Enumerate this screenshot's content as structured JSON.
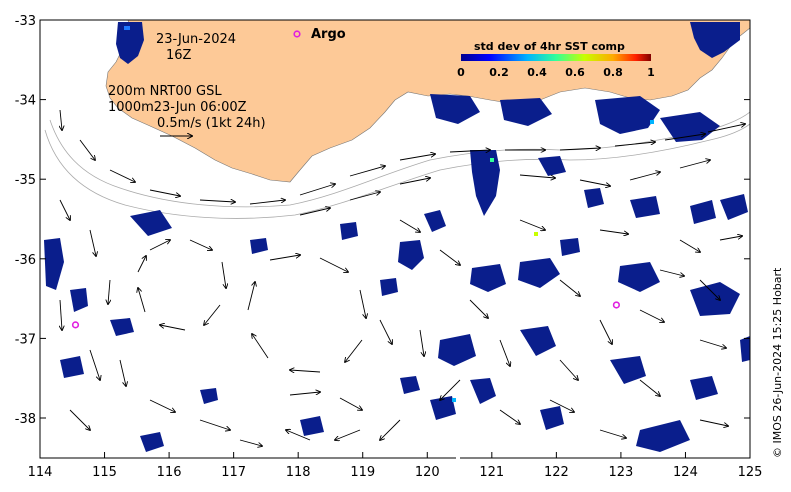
{
  "labels": {
    "date": "23-Jun-2024",
    "time": "16Z",
    "line1": "200m  NRT00 GSL",
    "line2": "1000m23-Jun 06:00Z",
    "scale": "0.5m/s (1kt 24h)",
    "argo": "Argo",
    "colorbar_title": "std dev of 4hr SST comp",
    "credit": "© IMOS 26-Jun-2024 15:25 Hobart"
  },
  "axes": {
    "x_ticks": [
      "114",
      "115",
      "116",
      "117",
      "118",
      "119",
      "120",
      "121",
      "122",
      "123",
      "124",
      "125"
    ],
    "y_ticks": [
      "-33",
      "-34",
      "-35",
      "-36",
      "-37",
      "-38"
    ],
    "lon_range": [
      114,
      125
    ],
    "lat_range": [
      -38.5,
      -33
    ]
  },
  "colorbar": {
    "ticks": [
      "0",
      "0.2",
      "0.4",
      "0.6",
      "0.8",
      "1"
    ]
  },
  "colors": {
    "land": "#fdc997",
    "sst_low": "#0a1e8c",
    "argo": "#e020e0"
  },
  "argo_floats": [
    {
      "lon": 114.55,
      "lat": -36.83
    },
    {
      "lon": 122.93,
      "lat": -36.58
    },
    {
      "lon": 118.0,
      "lat": -33.18
    }
  ]
}
